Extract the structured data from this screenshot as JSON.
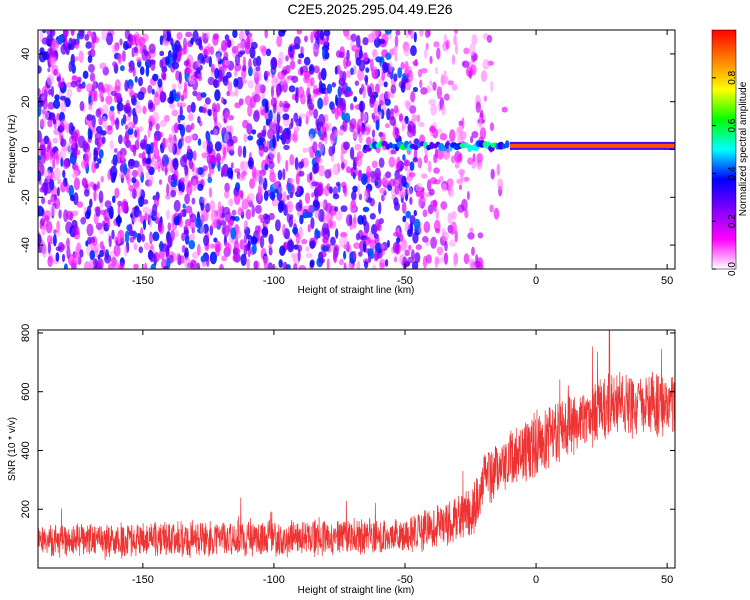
{
  "title": "C2E5.2025.295.04.49.E26",
  "chart_data": [
    {
      "type": "heatmap",
      "name": "spectrogram",
      "xlabel": "Height of straight line (km)",
      "ylabel": "Frequency (Hz)",
      "xlim": [
        -190,
        53
      ],
      "ylim": [
        -50,
        50
      ],
      "xticks": [
        -150,
        -100,
        -50,
        0,
        50
      ],
      "yticks": [
        -40,
        -20,
        0,
        20,
        40
      ],
      "grid": false,
      "colorbar": {
        "label": "Normalized spectral amplitude",
        "range": [
          0,
          1
        ],
        "ticks": [
          0.0,
          0.2,
          0.4,
          0.6,
          0.8
        ],
        "colors": [
          "#ffffff",
          "#ff00ff",
          "#8000ff",
          "#0000ff",
          "#00ffff",
          "#00ff00",
          "#ffff00",
          "#ff8000",
          "#ff0000"
        ]
      },
      "features": {
        "noise_region_x": [
          -190,
          -45
        ],
        "noise_fade_x": [
          -45,
          -10
        ],
        "carrier_frequency_hz": 1.5,
        "carrier_start_x": -65,
        "carrier_strong_start_x": -10
      }
    },
    {
      "type": "line",
      "name": "snr",
      "xlabel": "Height of straight line (km)",
      "ylabel": "SNR (10 * v/v)",
      "xlim": [
        -190,
        53
      ],
      "ylim": [
        0,
        810
      ],
      "xticks": [
        -150,
        -100,
        -50,
        0,
        50
      ],
      "yticks": [
        200,
        400,
        600,
        800
      ],
      "grid": false,
      "series": [
        {
          "name": "SNR",
          "color": "#ee3333",
          "trend": {
            "x": [
              -190,
              -100,
              -50,
              -40,
              -30,
              -24,
              -20,
              -10,
              0,
              10,
              20,
              30,
              40,
              53
            ],
            "y": [
              95,
              100,
              110,
              135,
              170,
              200,
              300,
              360,
              420,
              470,
              520,
              560,
              560,
              560
            ]
          },
          "spread": {
            "x": [
              -190,
              -50,
              -30,
              -20,
              0,
              53
            ],
            "y": [
              70,
              75,
              95,
              120,
              140,
              130
            ]
          },
          "peak": 810
        }
      ]
    }
  ]
}
